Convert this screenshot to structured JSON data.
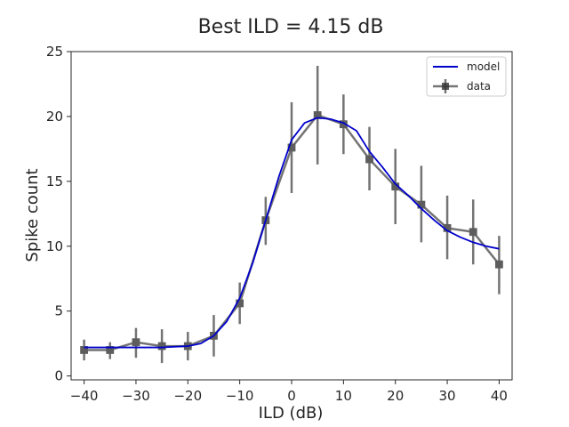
{
  "chart_data": {
    "type": "line",
    "title": "Best ILD = 4.15 dB",
    "xlabel": "ILD (dB)",
    "ylabel": "Spike count",
    "xlim": [
      -42.5,
      42.5
    ],
    "ylim": [
      -0.3,
      25
    ],
    "xticks": [
      -40,
      -30,
      -20,
      -10,
      0,
      10,
      20,
      30,
      40
    ],
    "yticks": [
      0,
      5,
      10,
      15,
      20,
      25
    ],
    "grid": false,
    "legend_position": "top-right",
    "colors": {
      "model": "#0000cc",
      "data": "#3a3a3a"
    },
    "series": [
      {
        "name": "model",
        "kind": "line",
        "x": [
          -40,
          -35,
          -30,
          -25,
          -20,
          -17.5,
          -15,
          -12.5,
          -10,
          -7.5,
          -5,
          -2.5,
          0,
          2.5,
          5,
          7.5,
          10,
          12.5,
          15,
          17.5,
          20,
          22.5,
          25,
          27.5,
          30,
          32.5,
          35,
          37.5,
          40
        ],
        "values": [
          2.2,
          2.2,
          2.2,
          2.2,
          2.3,
          2.5,
          3.1,
          4.2,
          6.0,
          8.7,
          12.0,
          15.3,
          18.2,
          19.5,
          19.9,
          19.8,
          19.5,
          18.9,
          17.3,
          16.1,
          14.8,
          13.9,
          12.9,
          12.0,
          11.2,
          10.7,
          10.3,
          10.0,
          9.8
        ]
      },
      {
        "name": "data",
        "kind": "errorbar",
        "x": [
          -40,
          -35,
          -30,
          -25,
          -20,
          -15,
          -10,
          -5,
          0,
          5,
          10,
          15,
          20,
          25,
          30,
          35,
          40
        ],
        "values": [
          2.0,
          2.0,
          2.6,
          2.3,
          2.3,
          3.1,
          5.6,
          12.0,
          17.6,
          20.1,
          19.4,
          16.7,
          14.6,
          13.2,
          11.4,
          11.1,
          8.6
        ],
        "err_low": [
          1.2,
          1.3,
          1.4,
          1.0,
          1.2,
          1.5,
          4.0,
          10.1,
          14.1,
          16.3,
          17.1,
          14.3,
          11.7,
          10.3,
          9.0,
          8.6,
          6.3
        ],
        "err_high": [
          2.8,
          2.6,
          3.7,
          3.6,
          3.4,
          4.7,
          7.2,
          13.8,
          21.1,
          23.9,
          21.7,
          19.2,
          17.5,
          16.2,
          13.9,
          13.6,
          10.8
        ]
      }
    ]
  }
}
